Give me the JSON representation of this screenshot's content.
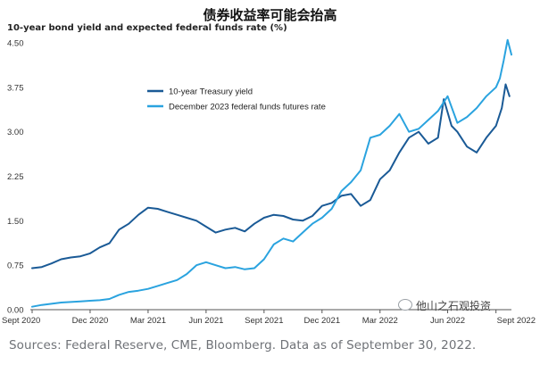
{
  "header": {
    "title": "债券收益率可能会抬高",
    "subtitle": "10-year bond yield and expected federal funds rate (%)"
  },
  "source": "Sources: Federal Reserve, CME, Bloomberg. Data as of September 30, 2022.",
  "watermark": "他山之石观投资",
  "chart_data": {
    "type": "line",
    "title": "10-year bond yield and expected federal funds rate (%)",
    "xlabel": "",
    "ylabel": "",
    "ylim": [
      0,
      4.5
    ],
    "xlim": [
      0,
      24.8
    ],
    "grid": false,
    "legend_position": "top-left",
    "y_ticks": [
      0,
      0.75,
      1.5,
      2.25,
      3.0,
      3.75,
      4.5
    ],
    "y_tick_labels": [
      "0.00",
      "0.75",
      "1.50",
      "2.25",
      "3.00",
      "3.75",
      "4.50"
    ],
    "x_ticks": [
      0,
      3,
      6,
      9,
      12,
      15,
      18,
      21.5,
      24
    ],
    "x_tick_labels": [
      "Sept 2020",
      "Dec 2020",
      "Mar 2021",
      "Jun 2021",
      "Sept 2021",
      "Dec 2021",
      "Mar 2022",
      "Jun 2022",
      "Sept 2022"
    ],
    "series": [
      {
        "name": "10-year Treasury yield",
        "color": "#1a5a96",
        "x": [
          0,
          0.5,
          1,
          1.5,
          2,
          2.5,
          3,
          3.5,
          4,
          4.5,
          5,
          5.5,
          6,
          6.5,
          7,
          7.5,
          8,
          8.5,
          9,
          9.5,
          10,
          10.5,
          11,
          11.5,
          12,
          12.5,
          13,
          13.5,
          14,
          14.5,
          15,
          15.5,
          16,
          16.5,
          17,
          17.5,
          18,
          18.5,
          19,
          19.5,
          20,
          20.5,
          21,
          21.3,
          21.7,
          22,
          22.5,
          23,
          23.5,
          24,
          24.3,
          24.5,
          24.7
        ],
        "y": [
          0.7,
          0.72,
          0.78,
          0.85,
          0.88,
          0.9,
          0.95,
          1.05,
          1.12,
          1.35,
          1.45,
          1.6,
          1.72,
          1.7,
          1.65,
          1.6,
          1.55,
          1.5,
          1.4,
          1.3,
          1.35,
          1.38,
          1.32,
          1.45,
          1.55,
          1.6,
          1.58,
          1.52,
          1.5,
          1.58,
          1.75,
          1.8,
          1.92,
          1.95,
          1.75,
          1.85,
          2.2,
          2.35,
          2.65,
          2.9,
          3.0,
          2.8,
          2.9,
          3.55,
          3.1,
          3.0,
          2.75,
          2.65,
          2.9,
          3.1,
          3.4,
          3.8,
          3.6
        ]
      },
      {
        "name": "December 2023 federal funds futures rate",
        "color": "#2aa3df",
        "x": [
          0,
          0.5,
          1,
          1.5,
          2,
          2.5,
          3,
          3.5,
          4,
          4.5,
          5,
          5.5,
          6,
          6.5,
          7,
          7.5,
          8,
          8.5,
          9,
          9.5,
          10,
          10.5,
          11,
          11.5,
          12,
          12.5,
          13,
          13.5,
          14,
          14.5,
          15,
          15.5,
          16,
          16.5,
          17,
          17.5,
          18,
          18.5,
          19,
          19.5,
          20,
          20.5,
          21,
          21.5,
          22,
          22.5,
          23,
          23.5,
          24,
          24.2,
          24.4,
          24.6,
          24.8
        ],
        "y": [
          0.05,
          0.08,
          0.1,
          0.12,
          0.13,
          0.14,
          0.15,
          0.16,
          0.18,
          0.25,
          0.3,
          0.32,
          0.35,
          0.4,
          0.45,
          0.5,
          0.6,
          0.75,
          0.8,
          0.75,
          0.7,
          0.72,
          0.68,
          0.7,
          0.85,
          1.1,
          1.2,
          1.15,
          1.3,
          1.45,
          1.55,
          1.7,
          2.0,
          2.15,
          2.35,
          2.9,
          2.95,
          3.1,
          3.3,
          3.0,
          3.05,
          3.2,
          3.35,
          3.6,
          3.15,
          3.25,
          3.4,
          3.6,
          3.75,
          3.9,
          4.2,
          4.55,
          4.3
        ]
      }
    ]
  }
}
